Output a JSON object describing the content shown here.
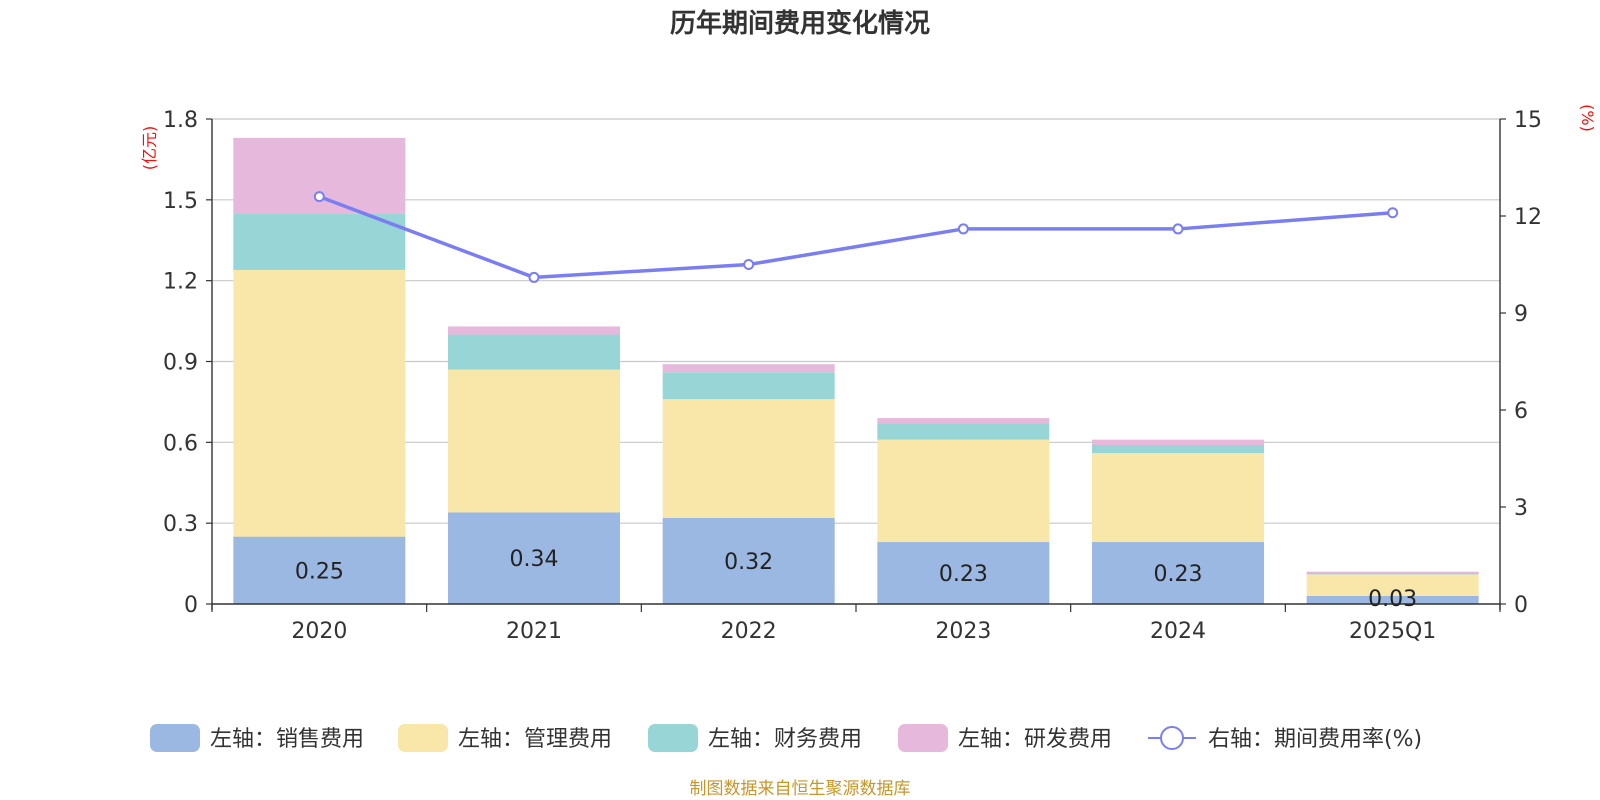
{
  "chart_data": {
    "type": "bar",
    "stacked": true,
    "title": "历年期间费用变化情况",
    "source": "制图数据来自恒生聚源数据库",
    "categories": [
      "2020",
      "2021",
      "2022",
      "2023",
      "2024",
      "2025Q1"
    ],
    "left_axis": {
      "unit": "(亿元)",
      "ylim": [
        0,
        1.8
      ],
      "ticks": [
        "0",
        "0.3",
        "0.6",
        "0.9",
        "1.2",
        "1.5",
        "1.8"
      ]
    },
    "right_axis": {
      "unit": "(%)",
      "ylim": [
        0,
        15
      ],
      "ticks": [
        "0",
        "3",
        "6",
        "9",
        "12",
        "15"
      ]
    },
    "grid": true,
    "legend_position": "bottom",
    "series": [
      {
        "name": "左轴：销售费用",
        "axis": "left",
        "color": "#9bb8e3",
        "values": [
          0.25,
          0.34,
          0.32,
          0.23,
          0.23,
          0.03
        ],
        "labels": [
          "0.25",
          "0.34",
          "0.32",
          "0.23",
          "0.23",
          "0.03"
        ]
      },
      {
        "name": "左轴：管理费用",
        "axis": "left",
        "color": "#f8e7a9",
        "values": [
          0.99,
          0.53,
          0.44,
          0.38,
          0.33,
          0.08
        ]
      },
      {
        "name": "左轴：财务费用",
        "axis": "left",
        "color": "#97d5d6",
        "values": [
          0.21,
          0.13,
          0.1,
          0.06,
          0.03,
          0.005
        ]
      },
      {
        "name": "左轴：研发费用",
        "axis": "left",
        "color": "#e6b8dc",
        "values": [
          0.28,
          0.03,
          0.03,
          0.02,
          0.02,
          0.005
        ]
      },
      {
        "name": "右轴：期间费用率(%)",
        "axis": "right",
        "type": "line",
        "color": "#7b7ef0",
        "values": [
          12.6,
          10.1,
          10.5,
          11.6,
          11.6,
          12.1
        ]
      }
    ]
  }
}
